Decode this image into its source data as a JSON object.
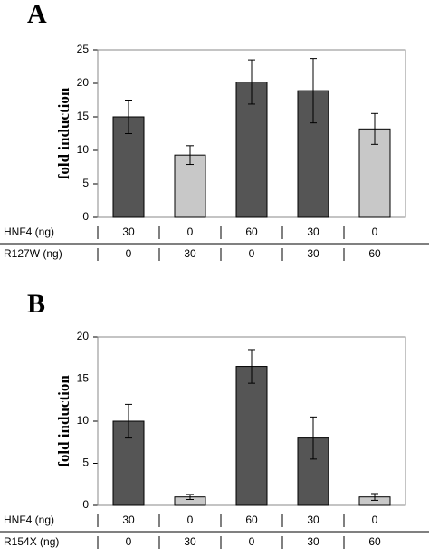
{
  "chart_data": [
    {
      "type": "bar",
      "panel_label": "A",
      "ylabel": "fold induction",
      "values": [
        15,
        9.3,
        20.2,
        18.9,
        13.2
      ],
      "errors": [
        2.5,
        1.4,
        3.3,
        4.8,
        2.3
      ],
      "colors": [
        "#555555",
        "#c8c8c8",
        "#555555",
        "#555555",
        "#c8c8c8"
      ],
      "ylim": [
        0,
        25
      ],
      "yticks": [
        0,
        5,
        10,
        15,
        20,
        25
      ],
      "table": [
        {
          "label": "HNF4 (ng)",
          "cells": [
            "30",
            "0",
            "60",
            "30",
            "0"
          ]
        },
        {
          "label": "R127W (ng)",
          "cells": [
            "0",
            "30",
            "0",
            "30",
            "60"
          ]
        }
      ]
    },
    {
      "type": "bar",
      "panel_label": "B",
      "ylabel": "fold induction",
      "values": [
        10,
        1,
        16.5,
        8,
        1
      ],
      "errors": [
        2,
        0.3,
        2,
        2.5,
        0.4
      ],
      "colors": [
        "#555555",
        "#c8c8c8",
        "#555555",
        "#555555",
        "#c8c8c8"
      ],
      "ylim": [
        0,
        20
      ],
      "yticks": [
        0,
        5,
        10,
        15,
        20
      ],
      "table": [
        {
          "label": "HNF4 (ng)",
          "cells": [
            "30",
            "0",
            "60",
            "30",
            "0"
          ]
        },
        {
          "label": "R154X (ng)",
          "cells": [
            "0",
            "30",
            "0",
            "30",
            "60"
          ]
        }
      ]
    }
  ]
}
